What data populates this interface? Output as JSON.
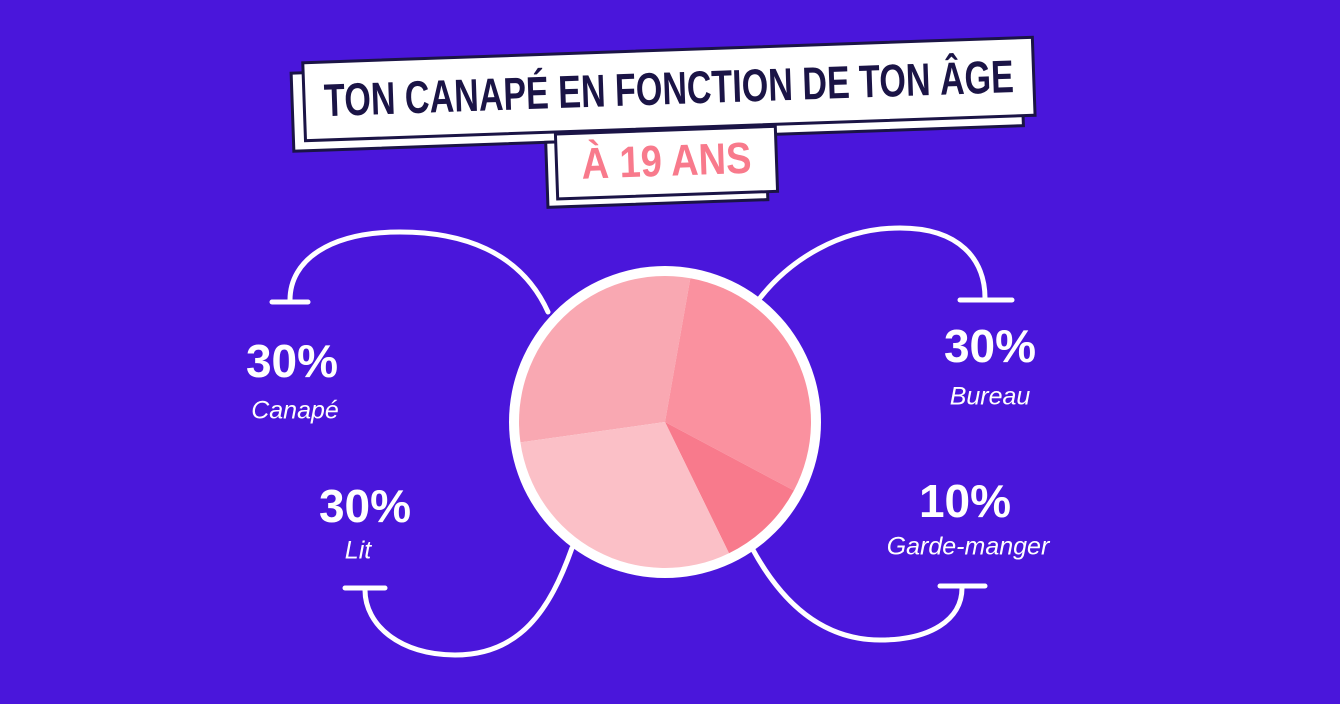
{
  "chart_data": {
    "type": "pie",
    "title": "TON CANAPÉ EN FONCTION DE TON ÂGE",
    "subtitle": "À 19 ANS",
    "categories": [
      "Canapé",
      "Bureau",
      "Garde-manger",
      "Lit"
    ],
    "values": [
      30,
      30,
      10,
      30
    ],
    "value_labels": [
      "30%",
      "30%",
      "10%",
      "30%"
    ],
    "colors": [
      "#f9a8b2",
      "#fa919f",
      "#f87a8c",
      "#fbc0c7"
    ]
  }
}
